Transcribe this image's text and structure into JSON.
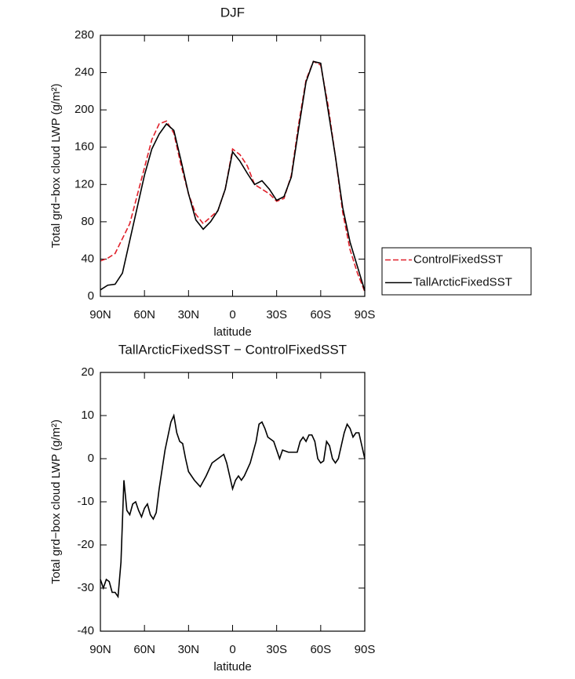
{
  "chart_data": [
    {
      "type": "line",
      "title": "DJF",
      "xlabel": "latitude",
      "ylabel": "Total grd−box cloud LWP (g/m²)",
      "x": [
        90,
        85,
        80,
        75,
        70,
        65,
        60,
        55,
        50,
        45,
        40,
        35,
        30,
        25,
        20,
        15,
        10,
        5,
        0,
        -5,
        -10,
        -15,
        -20,
        -25,
        -30,
        -35,
        -40,
        -45,
        -50,
        -55,
        -60,
        -65,
        -70,
        -75,
        -80,
        -85,
        -90
      ],
      "series": [
        {
          "name": "ControlFixedSST",
          "color": "#e0202a",
          "dashed": true,
          "values": [
            38,
            41,
            46,
            62,
            78,
            108,
            138,
            168,
            185,
            188,
            175,
            140,
            110,
            88,
            78,
            85,
            92,
            115,
            158,
            152,
            140,
            120,
            115,
            110,
            102,
            105,
            130,
            185,
            232,
            252,
            248,
            205,
            150,
            90,
            50,
            25,
            5
          ]
        },
        {
          "name": "TallArcticFixedSST",
          "color": "#000000",
          "dashed": false,
          "values": [
            7,
            12,
            13,
            25,
            60,
            95,
            130,
            158,
            174,
            185,
            178,
            145,
            110,
            82,
            72,
            80,
            92,
            115,
            155,
            145,
            132,
            120,
            124,
            115,
            103,
            107,
            128,
            180,
            230,
            252,
            250,
            200,
            150,
            95,
            58,
            32,
            6
          ]
        }
      ],
      "xlim": [
        90,
        -90
      ],
      "xticks": [
        {
          "value": 90,
          "label": "90N"
        },
        {
          "value": 60,
          "label": "60N"
        },
        {
          "value": 30,
          "label": "30N"
        },
        0,
        {
          "value": -30,
          "label": "30S"
        },
        {
          "value": -60,
          "label": "60S"
        },
        {
          "value": -90,
          "label": "90S"
        }
      ],
      "ylim": [
        0,
        280
      ],
      "yticks": [
        0,
        40,
        80,
        120,
        160,
        200,
        240,
        280
      ],
      "legend": "right"
    },
    {
      "type": "line",
      "title": "TallArcticFixedSST − ControlFixedSST",
      "xlabel": "latitude",
      "ylabel": "Total grd−box cloud LWP (g/m²)",
      "x": [
        90,
        88,
        86,
        84,
        82,
        80,
        78,
        76,
        74,
        72,
        70,
        68,
        66,
        64,
        62,
        60,
        58,
        56,
        54,
        52,
        50,
        46,
        42,
        40,
        38,
        36,
        34,
        32,
        30,
        26,
        22,
        18,
        14,
        10,
        6,
        4,
        0,
        -2,
        -4,
        -6,
        -8,
        -12,
        -16,
        -18,
        -20,
        -22,
        -24,
        -28,
        -32,
        -34,
        -38,
        -40,
        -44,
        -46,
        -48,
        -50,
        -52,
        -54,
        -56,
        -58,
        -60,
        -62,
        -64,
        -66,
        -68,
        -70,
        -72,
        -76,
        -78,
        -80,
        -82,
        -84,
        -86,
        -88,
        -90
      ],
      "values": [
        -28,
        -30,
        -28,
        -28.5,
        -31,
        -31,
        -32,
        -24,
        -5,
        -12,
        -13,
        -10.5,
        -10,
        -12,
        -13.5,
        -11.5,
        -10.5,
        -13,
        -14,
        -12.5,
        -7,
        2,
        8.5,
        10,
        6,
        4,
        3.5,
        0,
        -3,
        -5,
        -6.5,
        -4,
        -1,
        0,
        1,
        -1,
        -7,
        -5,
        -4,
        -5,
        -4,
        -1,
        4,
        8,
        8.5,
        7,
        5,
        4,
        0,
        2,
        1.5,
        1.5,
        1.5,
        4,
        5,
        4,
        5.5,
        5.5,
        4,
        0,
        -1,
        -0.5,
        4,
        3,
        0,
        -1,
        0,
        6,
        8,
        7,
        5,
        6,
        6,
        3,
        0
      ],
      "color": "#000000",
      "xlim": [
        90,
        -90
      ],
      "xticks": [
        {
          "value": 90,
          "label": "90N"
        },
        {
          "value": 60,
          "label": "60N"
        },
        {
          "value": 30,
          "label": "30N"
        },
        0,
        {
          "value": -30,
          "label": "30S"
        },
        {
          "value": -60,
          "label": "60S"
        },
        {
          "value": -90,
          "label": "90S"
        }
      ],
      "ylim": [
        -40,
        20
      ],
      "yticks": [
        -40,
        -30,
        -20,
        -10,
        0,
        10,
        20
      ]
    }
  ]
}
